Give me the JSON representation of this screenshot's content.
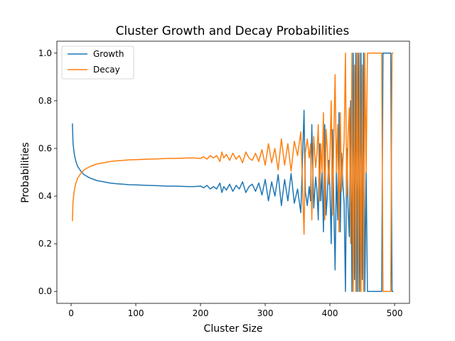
{
  "chart_data": {
    "type": "line",
    "title": "Cluster Growth and Decay Probabilities",
    "xlabel": "Cluster Size",
    "ylabel": "Probabilities",
    "xlim": [
      -22,
      523
    ],
    "ylim": [
      -0.05,
      1.05
    ],
    "xticks": [
      0,
      100,
      200,
      300,
      400,
      500
    ],
    "yticks": [
      0.0,
      0.2,
      0.4,
      0.6,
      0.8,
      1.0
    ],
    "xtick_labels": [
      "0",
      "100",
      "200",
      "300",
      "400",
      "500"
    ],
    "ytick_labels": [
      "0.0",
      "0.2",
      "0.4",
      "0.6",
      "0.8",
      "1.0"
    ],
    "grid": false,
    "legend": {
      "placement": "top-left"
    },
    "series": [
      {
        "name": "Growth",
        "color": "#1f77b4",
        "x": [
          2,
          3,
          5,
          7,
          10,
          15,
          20,
          25,
          30,
          40,
          50,
          60,
          70,
          80,
          90,
          100,
          110,
          120,
          130,
          140,
          150,
          160,
          170,
          180,
          190,
          200,
          205,
          210,
          215,
          220,
          225,
          230,
          233,
          236,
          240,
          245,
          250,
          255,
          260,
          265,
          270,
          275,
          280,
          285,
          290,
          295,
          300,
          305,
          310,
          315,
          320,
          325,
          330,
          335,
          340,
          345,
          350,
          355,
          360,
          362,
          365,
          368,
          370,
          372,
          375,
          378,
          380,
          382,
          384,
          386,
          388,
          390,
          392,
          394,
          396,
          398,
          400,
          402,
          404,
          406,
          408,
          410,
          412,
          414,
          416,
          418,
          420,
          422,
          424,
          426,
          428,
          430,
          432,
          434,
          436,
          438,
          440,
          442,
          444,
          446,
          448,
          450,
          452,
          454,
          456,
          458,
          460,
          462,
          464,
          466,
          468,
          470,
          472,
          474,
          476,
          478,
          480,
          482,
          484,
          486,
          488,
          490,
          492,
          494,
          496,
          498
        ],
        "y": [
          0.705,
          0.62,
          0.575,
          0.55,
          0.525,
          0.505,
          0.49,
          0.482,
          0.475,
          0.465,
          0.46,
          0.455,
          0.452,
          0.45,
          0.448,
          0.447,
          0.446,
          0.445,
          0.444,
          0.443,
          0.442,
          0.442,
          0.441,
          0.44,
          0.44,
          0.442,
          0.435,
          0.445,
          0.43,
          0.44,
          0.43,
          0.455,
          0.415,
          0.44,
          0.425,
          0.45,
          0.42,
          0.445,
          0.43,
          0.46,
          0.415,
          0.44,
          0.45,
          0.42,
          0.455,
          0.405,
          0.47,
          0.38,
          0.46,
          0.4,
          0.49,
          0.36,
          0.47,
          0.38,
          0.495,
          0.37,
          0.43,
          0.33,
          0.76,
          0.42,
          0.36,
          0.44,
          0.38,
          0.7,
          0.35,
          0.48,
          0.42,
          0.3,
          0.62,
          0.38,
          0.5,
          0.25,
          0.7,
          0.32,
          0.4,
          0.55,
          0.43,
          0.2,
          0.68,
          0.36,
          0.09,
          0.5,
          0.3,
          0.75,
          0.25,
          0.58,
          0.45,
          0.37,
          0.0,
          0.6,
          0.35,
          0.23,
          0.8,
          0.0,
          1.0,
          0.05,
          1.0,
          0.0,
          1.0,
          0.0,
          1.0,
          0.05,
          1.0,
          0.0,
          0.5,
          0.0,
          0.0,
          0.0,
          0.0,
          0.0,
          0.0,
          0.0,
          0.0,
          0.0,
          0.0,
          0.0,
          0.0,
          1.0,
          1.0,
          1.0,
          1.0,
          1.0,
          1.0,
          1.0,
          0.0,
          0.0
        ]
      },
      {
        "name": "Decay",
        "color": "#ff7f0e",
        "x": [
          2,
          3,
          5,
          7,
          10,
          15,
          20,
          25,
          30,
          40,
          50,
          60,
          70,
          80,
          90,
          100,
          110,
          120,
          130,
          140,
          150,
          160,
          170,
          180,
          190,
          200,
          205,
          210,
          215,
          220,
          225,
          230,
          233,
          236,
          240,
          245,
          250,
          255,
          260,
          265,
          270,
          275,
          280,
          285,
          290,
          295,
          300,
          305,
          310,
          315,
          320,
          325,
          330,
          335,
          340,
          345,
          350,
          355,
          360,
          362,
          365,
          368,
          370,
          372,
          375,
          378,
          380,
          382,
          384,
          386,
          388,
          390,
          392,
          394,
          396,
          398,
          400,
          402,
          404,
          406,
          408,
          410,
          412,
          414,
          416,
          418,
          420,
          422,
          424,
          426,
          428,
          430,
          432,
          434,
          436,
          438,
          440,
          442,
          444,
          446,
          448,
          450,
          452,
          454,
          456,
          458,
          460,
          462,
          464,
          466,
          468,
          470,
          472,
          474,
          476,
          478,
          480,
          482,
          484,
          486,
          488,
          490,
          492,
          494,
          496,
          498
        ],
        "y": [
          0.295,
          0.38,
          0.425,
          0.45,
          0.475,
          0.495,
          0.51,
          0.518,
          0.525,
          0.535,
          0.54,
          0.545,
          0.548,
          0.55,
          0.552,
          0.553,
          0.554,
          0.555,
          0.556,
          0.557,
          0.558,
          0.558,
          0.559,
          0.56,
          0.56,
          0.558,
          0.565,
          0.555,
          0.57,
          0.56,
          0.57,
          0.545,
          0.585,
          0.56,
          0.575,
          0.55,
          0.58,
          0.555,
          0.57,
          0.54,
          0.585,
          0.56,
          0.55,
          0.58,
          0.545,
          0.595,
          0.53,
          0.62,
          0.54,
          0.6,
          0.51,
          0.64,
          0.53,
          0.62,
          0.505,
          0.63,
          0.57,
          0.67,
          0.24,
          0.58,
          0.64,
          0.56,
          0.62,
          0.3,
          0.65,
          0.52,
          0.58,
          0.7,
          0.38,
          0.62,
          0.5,
          0.75,
          0.3,
          0.68,
          0.6,
          0.45,
          0.57,
          0.8,
          0.32,
          0.64,
          0.91,
          0.5,
          0.7,
          0.25,
          0.75,
          0.42,
          0.55,
          0.63,
          1.0,
          0.4,
          0.65,
          0.77,
          0.2,
          1.0,
          0.0,
          0.95,
          0.0,
          1.0,
          0.0,
          1.0,
          0.0,
          0.95,
          0.0,
          1.0,
          0.5,
          1.0,
          1.0,
          1.0,
          1.0,
          1.0,
          1.0,
          1.0,
          1.0,
          1.0,
          1.0,
          1.0,
          1.0,
          0.0,
          0.0,
          0.0,
          0.0,
          0.0,
          0.0,
          0.0,
          1.0,
          1.0
        ]
      }
    ]
  }
}
